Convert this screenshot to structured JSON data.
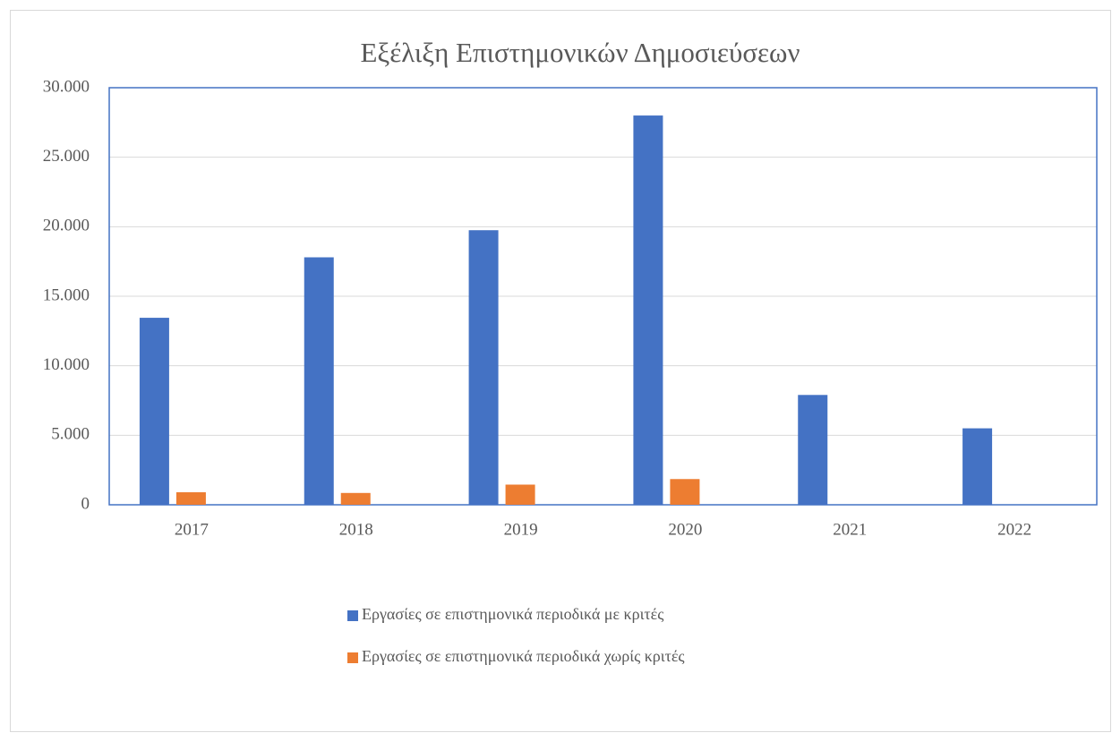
{
  "chart_data": {
    "type": "bar",
    "title": "Εξέλιξη Επιστημονικών Δημοσιεύσεων",
    "categories": [
      "2017",
      "2018",
      "2019",
      "2020",
      "2021",
      "2022"
    ],
    "series": [
      {
        "name": "Εργασίες σε επιστημονικά περιοδικά με κριτές",
        "color": "#4472c4",
        "values": [
          13450,
          17800,
          19750,
          28000,
          7900,
          5500
        ]
      },
      {
        "name": "Εργασίες σε επιστημονικά περιοδικά χωρίς κριτές",
        "color": "#ed7d31",
        "values": [
          900,
          850,
          1450,
          1850,
          null,
          null
        ]
      }
    ],
    "ylim": [
      0,
      30000
    ],
    "yticks": [
      0,
      {
        "value": 5000,
        "label": "5.000"
      },
      {
        "value": 10000,
        "label": "10.000"
      },
      {
        "value": 15000,
        "label": "15.000"
      },
      {
        "value": 20000,
        "label": "20.000"
      },
      {
        "value": 25000,
        "label": "25.000"
      },
      {
        "value": 30000,
        "label": "30.000"
      }
    ],
    "grid": true,
    "legend": "bottom"
  }
}
